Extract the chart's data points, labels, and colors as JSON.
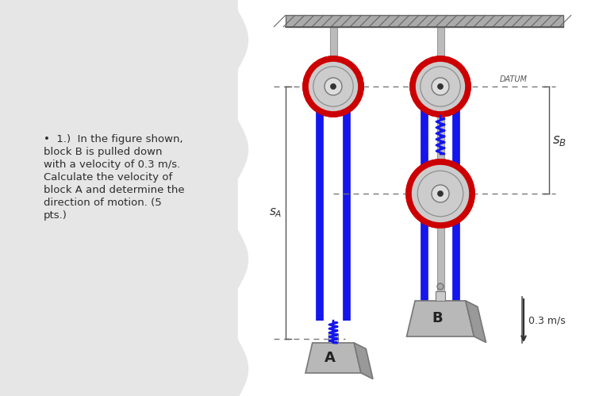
{
  "bg_left": "#e6e6e6",
  "bg_right": "#ffffff",
  "text_color": "#2c2c2c",
  "bullet_text_lines": [
    "•  1.)  In the figure shown,",
    "block B is pulled down",
    "with a velocity of 0.3 m/s.",
    "Calculate the velocity of",
    "block A and determine the",
    "direction of motion. (5",
    "pts.)"
  ],
  "text_fontsize": 9.5,
  "datum_label": "DATUM",
  "velocity_label": "0.3 m/s",
  "blockA_label": "A",
  "blockB_label": "B",
  "sA_label": "S_A",
  "sB_label": "S_B",
  "rope_color": "#1515ee",
  "pulley_rim_color": "#cc0000",
  "pulley_body_color": "#cccccc",
  "shaft_color": "#bbbbbb",
  "block_color_main": "#b8b8b8",
  "block_color_side": "#999999",
  "dashed_color": "#555555",
  "arrow_color": "#333333",
  "ceil_color": "#aaaaaa",
  "ceil_hatch_color": "#666666"
}
